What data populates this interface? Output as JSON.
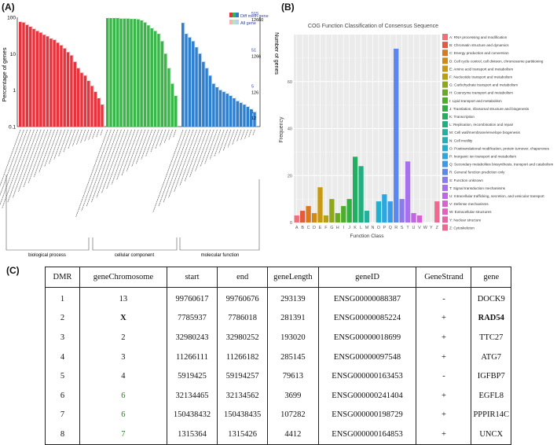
{
  "panel_a": {
    "label": "(A)",
    "legend": [
      "Diff meth gene",
      "All gene"
    ],
    "ylabel_left": "Percentage of genes",
    "ylabel_right": "Number of genes",
    "left_ticks": [
      "100",
      "10",
      "1",
      "0.1"
    ],
    "right_ticks_blue": [
      "515",
      "51",
      "5",
      "1"
    ],
    "right_ticks_black": [
      "12660",
      "1266",
      "126",
      "12"
    ],
    "categories": [
      "biological process",
      "cellular component",
      "molecular function"
    ],
    "colors": {
      "bp": "#e8323c",
      "bp_all": "#f4b4b8",
      "cc": "#3ab54a",
      "cc_all": "#b9e4b9",
      "mf": "#2f7fcf",
      "mf_all": "#b6d3ee"
    }
  },
  "panel_b": {
    "label": "(B)",
    "title": "COG Function Classification of Consensus Sequence",
    "xlabel": "Function Class",
    "ylabel": "Frequency",
    "legend": [
      "A: RNA processing and modification",
      "B: Chromatin structure and dynamics",
      "C: Energy production and conversion",
      "D: Cell cycle control, cell division, chromosome partitioning",
      "E: Amino acid transport and metabolism",
      "F: Nucleotide transport and metabolism",
      "G: Carbohydrate transport and metabolism",
      "H: Coenzyme transport and metabolism",
      "I: Lipid transport and metabolism",
      "J: Translation, ribosomal structure and biogenesis",
      "K: Transcription",
      "L: Replication, recombination and repair",
      "M: Cell wall/membrane/envelope biogenesis",
      "N: Cell motility",
      "O: Posttranslational modification, protein turnover, chaperones",
      "P: Inorganic ion transport and metabolism",
      "Q: Secondary metabolites biosynthesis, transport and catabolism",
      "R: General function prediction only",
      "S: Function unknown",
      "T: Signal transduction mechanisms",
      "U: Intracellular trafficking, secretion, and vesicular transport",
      "V: Defense mechanisms",
      "W: Extracellular structures",
      "Y: Nuclear structure",
      "Z: Cytoskeleton"
    ]
  },
  "chart_data": [
    {
      "type": "bar",
      "title": "",
      "xlabel": "",
      "ylabel": "Percentage of genes",
      "ylim": [
        0.1,
        100
      ],
      "yscale": "log",
      "series": [
        {
          "name": "Diff meth gene",
          "group": "biological process",
          "values": [
            75,
            72,
            62,
            55,
            48,
            42,
            38,
            33,
            30,
            26,
            24,
            20,
            17,
            14,
            11,
            9,
            6,
            4,
            3,
            2.5,
            1.8,
            1.3,
            0.9,
            0.6,
            0.4
          ]
        },
        {
          "name": "Diff meth gene",
          "group": "cellular component",
          "values": [
            95,
            95,
            95,
            95,
            92,
            92,
            92,
            90,
            90,
            88,
            82,
            72,
            60,
            50,
            42,
            35,
            22,
            10,
            4,
            1.5,
            0.7
          ]
        },
        {
          "name": "Diff meth gene",
          "group": "molecular function",
          "values": [
            70,
            35,
            28,
            22,
            15,
            10,
            6,
            4,
            2.5,
            1.5,
            1.2,
            1,
            0.9,
            0.8,
            0.7,
            0.6,
            0.5,
            0.45,
            0.4,
            0.35,
            0.3,
            0.25
          ]
        }
      ]
    },
    {
      "type": "bar",
      "title": "COG Function Classification of Consensus Sequence",
      "xlabel": "Function Class",
      "ylabel": "Frequency",
      "ylim": [
        0,
        80
      ],
      "categories": [
        "A",
        "B",
        "C",
        "D",
        "E",
        "F",
        "G",
        "H",
        "I",
        "J",
        "K",
        "L",
        "M",
        "N",
        "O",
        "P",
        "Q",
        "R",
        "S",
        "T",
        "U",
        "V",
        "W",
        "Y",
        "Z"
      ],
      "yticks": [
        "0",
        "20",
        "40",
        "60"
      ],
      "values": [
        3,
        5,
        7,
        4,
        15,
        3,
        10,
        4,
        7,
        10,
        28,
        24,
        5,
        0,
        9,
        12,
        9,
        74,
        10,
        26,
        4,
        3,
        0,
        0,
        9
      ],
      "colors": [
        "#ef6f7a",
        "#e45a3a",
        "#d97a1e",
        "#d08a18",
        "#c89a10",
        "#b8a010",
        "#8fa81a",
        "#6aaa22",
        "#4cae2a",
        "#2fb040",
        "#22b060",
        "#20b080",
        "#22b0a0",
        "#20b0b8",
        "#22b0d0",
        "#2aa8e0",
        "#3a9ae8",
        "#5a88f0",
        "#8a7af0",
        "#a870ee",
        "#c466e4",
        "#d862d4",
        "#e460c0",
        "#ea62a8",
        "#ee6890"
      ]
    }
  ],
  "table": {
    "headers": [
      "DMR",
      "geneChromosome",
      "start",
      "end",
      "geneLength",
      "geneID",
      "GeneStrand",
      "gene"
    ],
    "rows": [
      [
        "1",
        "13",
        "99760617",
        "99760676",
        "293139",
        "ENSG00000088387",
        "-",
        "DOCK9"
      ],
      [
        "2",
        "X",
        "7785937",
        "7786018",
        "281391",
        "ENSG00000085224",
        "+",
        "RAD54"
      ],
      [
        "3",
        "2",
        "32980243",
        "32980252",
        "193020",
        "ENSG00000018699",
        "+",
        "TTC27"
      ],
      [
        "4",
        "3",
        "11266111",
        "11266182",
        "285145",
        "ENSG00000097548",
        "+",
        "ATG7"
      ],
      [
        "5",
        "4",
        "5919425",
        "59194257",
        "79613",
        "ENSG000000163453",
        "-",
        "IGFBP7"
      ],
      [
        "6",
        "6",
        "32134465",
        "32134562",
        "3699",
        "ENSG000000241404",
        "+",
        "EGFL8"
      ],
      [
        "7",
        "6",
        "150438432",
        "150438435",
        "107282",
        "ENSG000000198729",
        "+",
        "PPPIR14C"
      ],
      [
        "8",
        "7",
        "1315364",
        "1315426",
        "4412",
        "ENSG000000164853",
        "+",
        "UNCX"
      ]
    ]
  },
  "panel_c": {
    "label": "(C)"
  }
}
